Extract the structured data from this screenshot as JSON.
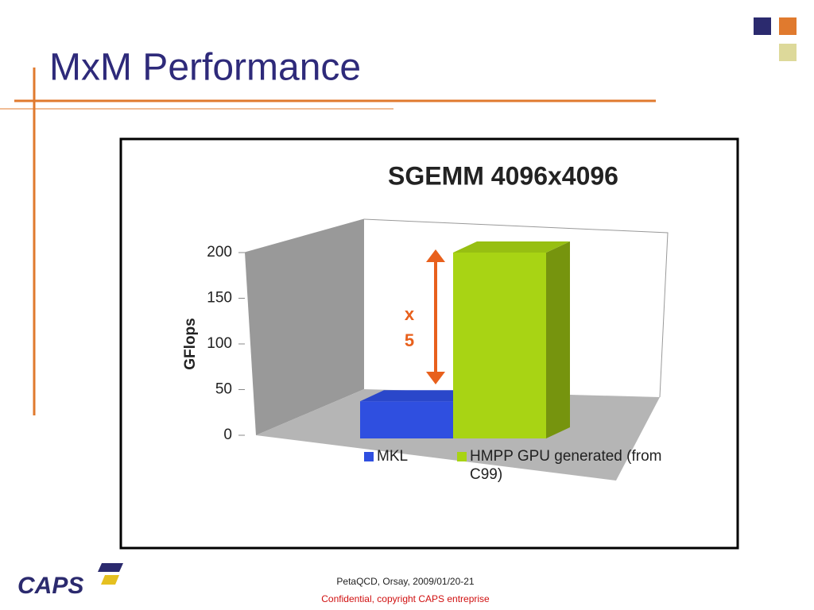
{
  "slide": {
    "title": "MxM Performance",
    "footer": "PetaQCD, Orsay, 2009/01/20-21",
    "confidential": "Confidential,  copyright CAPS entreprise",
    "logo": "CAPS"
  },
  "chart_data": {
    "type": "bar3d",
    "title": "SGEMM 4096x4096",
    "y_label": "GFlops",
    "series": [
      {
        "name": "MKL",
        "color": "#2f4fe0",
        "values": [
          40
        ]
      },
      {
        "name": "HMPP GPU generated (from C99)",
        "color": "#a8d414",
        "values": [
          200
        ]
      }
    ],
    "ylim": [
      0,
      200
    ],
    "yticks": [
      0,
      50,
      100,
      150,
      200
    ],
    "annotations": [
      "x",
      "5"
    ],
    "legend": "bottom"
  }
}
